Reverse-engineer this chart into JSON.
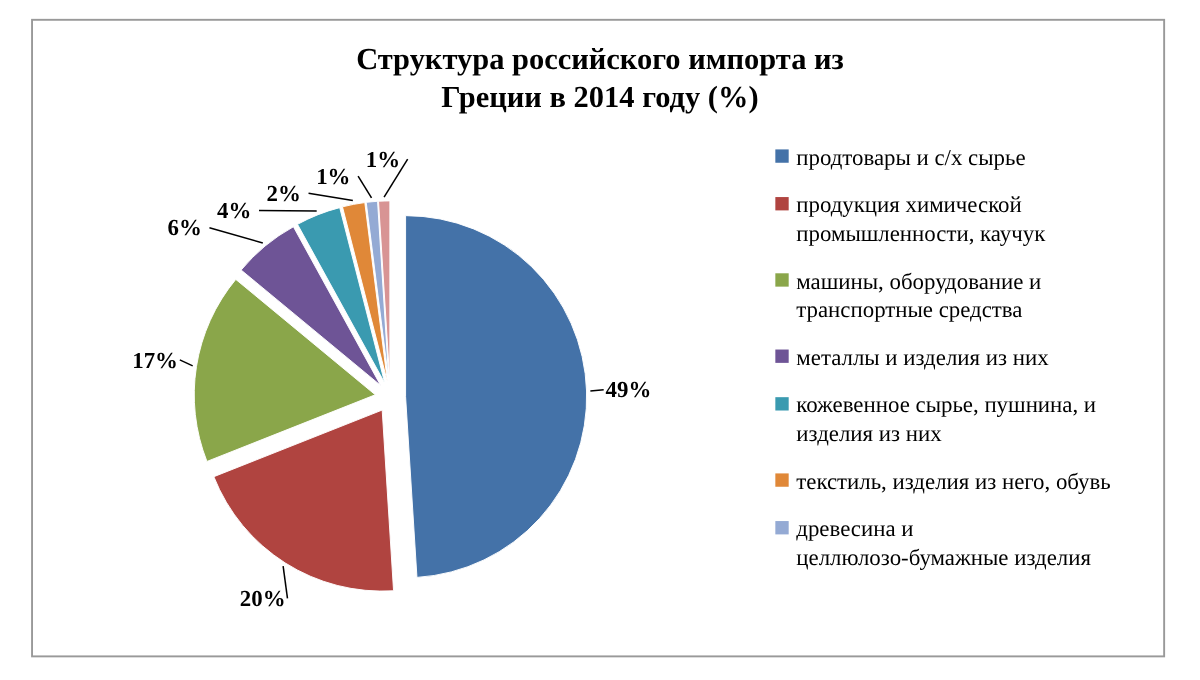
{
  "chart_data": {
    "type": "pie",
    "title": "Структура российского импорта из Греции в 2014 году (%)",
    "categories": [
      "продтовары и с/х сырье",
      "продукция химической промышленности, каучук",
      "машины, оборудование и транспортные средства",
      "металлы и изделия из них",
      "кожевенное сырье, пушнина, и изделия из них",
      "текстиль, изделия из него, обувь",
      "древесина и целлюлозо-бумажные изделия",
      null
    ],
    "values": [
      49,
      20,
      17,
      6,
      4,
      2,
      1,
      1
    ],
    "colors": [
      "#4472a8",
      "#b04440",
      "#8aa64a",
      "#6e5496",
      "#3a9ab0",
      "#e08838",
      "#94aad4",
      "#d89494"
    ],
    "value_labels": [
      "49%",
      "20%",
      "17%",
      "6%",
      "4%",
      "2%",
      "1%",
      "1%"
    ],
    "legend": "right"
  }
}
